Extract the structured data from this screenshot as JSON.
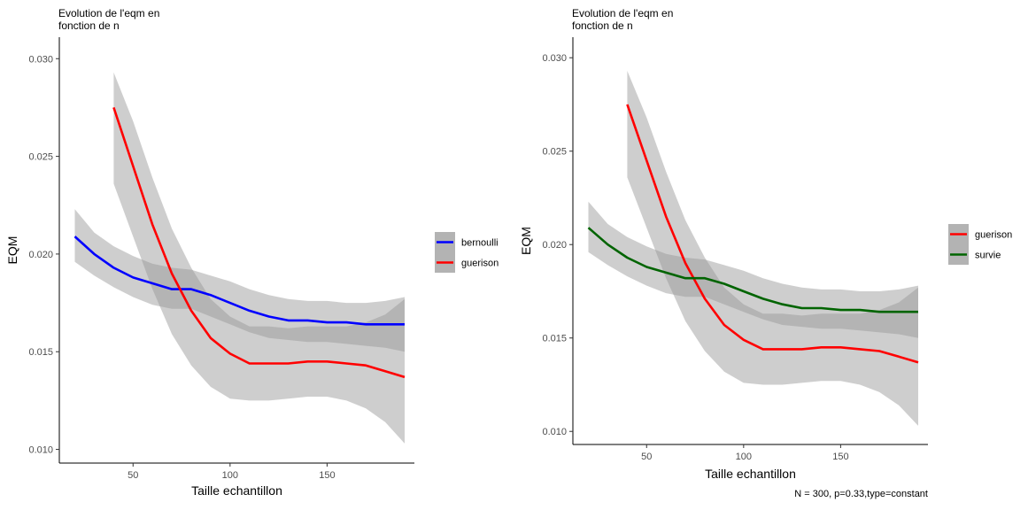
{
  "chart_data": [
    {
      "type": "line",
      "title": [
        "Evolution de l'eqm en",
        "fonction de n"
      ],
      "xlabel": "Taille echantillon",
      "ylabel": "EQM",
      "xlim": [
        12,
        195
      ],
      "ylim": [
        0.0093,
        0.0311
      ],
      "xticks": [
        50,
        100,
        150
      ],
      "yticks": [
        0.01,
        0.015,
        0.02,
        0.025,
        0.03
      ],
      "ytick_labels": [
        "0.010",
        "0.015",
        "0.020",
        "0.025",
        "0.030"
      ],
      "grid": false,
      "legend_position": "right",
      "caption": "",
      "series": [
        {
          "name": "bernoulli",
          "color": "#0000ff",
          "x": [
            20,
            30,
            40,
            50,
            60,
            70,
            80,
            90,
            100,
            110,
            120,
            130,
            140,
            150,
            160,
            170,
            180,
            190
          ],
          "y": [
            0.0209,
            0.02,
            0.0193,
            0.0188,
            0.0185,
            0.0182,
            0.0182,
            0.0179,
            0.0175,
            0.0171,
            0.0168,
            0.0166,
            0.0166,
            0.0165,
            0.0165,
            0.0164,
            0.0164,
            0.0164
          ],
          "lower": [
            0.0196,
            0.0189,
            0.0183,
            0.0178,
            0.0174,
            0.0172,
            0.0172,
            0.0168,
            0.0164,
            0.016,
            0.0157,
            0.0156,
            0.0155,
            0.0155,
            0.0154,
            0.0153,
            0.0152,
            0.015
          ],
          "upper": [
            0.0223,
            0.0211,
            0.0204,
            0.0199,
            0.0195,
            0.0193,
            0.0192,
            0.0189,
            0.0186,
            0.0182,
            0.0179,
            0.0177,
            0.0176,
            0.0176,
            0.0175,
            0.0175,
            0.0176,
            0.0178
          ]
        },
        {
          "name": "guerison",
          "color": "#ff0000",
          "x": [
            40,
            50,
            60,
            70,
            80,
            90,
            100,
            110,
            120,
            130,
            140,
            150,
            160,
            170,
            180,
            190
          ],
          "y": [
            0.0275,
            0.0245,
            0.0215,
            0.019,
            0.0171,
            0.0157,
            0.0149,
            0.0144,
            0.0144,
            0.0144,
            0.0145,
            0.0145,
            0.0144,
            0.0143,
            0.014,
            0.0137
          ],
          "lower": [
            0.0236,
            0.0209,
            0.0182,
            0.0159,
            0.0143,
            0.0132,
            0.0126,
            0.0125,
            0.0125,
            0.0126,
            0.0127,
            0.0127,
            0.0125,
            0.0121,
            0.0114,
            0.0103
          ],
          "upper": [
            0.0293,
            0.0268,
            0.0239,
            0.0213,
            0.0193,
            0.0177,
            0.0168,
            0.0163,
            0.0163,
            0.0162,
            0.0163,
            0.0163,
            0.0163,
            0.0165,
            0.0169,
            0.0177
          ]
        }
      ]
    },
    {
      "type": "line",
      "title": [
        "Evolution de l'eqm en",
        "fonction de n"
      ],
      "xlabel": "Taille echantillon",
      "ylabel": "EQM",
      "xlim": [
        12,
        195
      ],
      "ylim": [
        0.0093,
        0.0311
      ],
      "xticks": [
        50,
        100,
        150
      ],
      "yticks": [
        0.01,
        0.015,
        0.02,
        0.025,
        0.03
      ],
      "ytick_labels": [
        "0.010",
        "0.015",
        "0.020",
        "0.025",
        "0.030"
      ],
      "grid": false,
      "legend_position": "right",
      "caption": "N = 300, p=0.33,type=constant",
      "series": [
        {
          "name": "guerison",
          "color": "#ff0000",
          "x": [
            40,
            50,
            60,
            70,
            80,
            90,
            100,
            110,
            120,
            130,
            140,
            150,
            160,
            170,
            180,
            190
          ],
          "y": [
            0.0275,
            0.0245,
            0.0215,
            0.019,
            0.0171,
            0.0157,
            0.0149,
            0.0144,
            0.0144,
            0.0144,
            0.0145,
            0.0145,
            0.0144,
            0.0143,
            0.014,
            0.0137
          ],
          "lower": [
            0.0236,
            0.0209,
            0.0182,
            0.0159,
            0.0143,
            0.0132,
            0.0126,
            0.0125,
            0.0125,
            0.0126,
            0.0127,
            0.0127,
            0.0125,
            0.0121,
            0.0114,
            0.0103
          ],
          "upper": [
            0.0293,
            0.0268,
            0.0239,
            0.0213,
            0.0193,
            0.0177,
            0.0168,
            0.0163,
            0.0163,
            0.0162,
            0.0163,
            0.0163,
            0.0163,
            0.0165,
            0.0169,
            0.0177
          ]
        },
        {
          "name": "survie",
          "color": "#006400",
          "x": [
            20,
            30,
            40,
            50,
            60,
            70,
            80,
            90,
            100,
            110,
            120,
            130,
            140,
            150,
            160,
            170,
            180,
            190
          ],
          "y": [
            0.0209,
            0.02,
            0.0193,
            0.0188,
            0.0185,
            0.0182,
            0.0182,
            0.0179,
            0.0175,
            0.0171,
            0.0168,
            0.0166,
            0.0166,
            0.0165,
            0.0165,
            0.0164,
            0.0164,
            0.0164
          ],
          "lower": [
            0.0196,
            0.0189,
            0.0183,
            0.0178,
            0.0174,
            0.0172,
            0.0172,
            0.0168,
            0.0164,
            0.016,
            0.0157,
            0.0156,
            0.0155,
            0.0155,
            0.0154,
            0.0153,
            0.0152,
            0.015
          ],
          "upper": [
            0.0223,
            0.0211,
            0.0204,
            0.0199,
            0.0195,
            0.0193,
            0.0192,
            0.0189,
            0.0186,
            0.0182,
            0.0179,
            0.0177,
            0.0176,
            0.0176,
            0.0175,
            0.0175,
            0.0176,
            0.0178
          ]
        }
      ]
    }
  ]
}
